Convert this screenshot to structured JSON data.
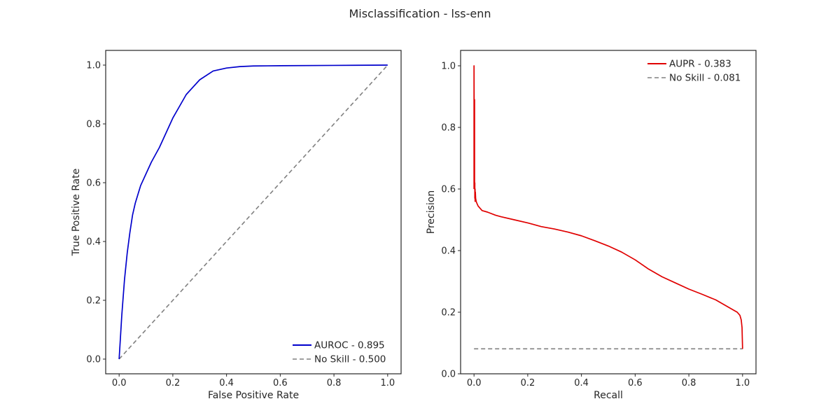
{
  "figure": {
    "title": "Misclassification - lss-enn"
  },
  "chart_data": [
    {
      "type": "line",
      "title": "",
      "xlabel": "False Positive Rate",
      "ylabel": "True Positive Rate",
      "xlim": [
        -0.05,
        1.05
      ],
      "ylim": [
        -0.05,
        1.05
      ],
      "xticks": [
        0.0,
        0.2,
        0.4,
        0.6,
        0.8,
        1.0
      ],
      "yticks": [
        0.0,
        0.2,
        0.4,
        0.6,
        0.8,
        1.0
      ],
      "tick_labels": [
        "0.0",
        "0.2",
        "0.4",
        "0.6",
        "0.8",
        "1.0"
      ],
      "grid": false,
      "legend": "lower-right",
      "series": [
        {
          "name": "AUROC - 0.895",
          "color": "#0000cc",
          "style": "solid",
          "x": [
            0.0,
            0.01,
            0.02,
            0.03,
            0.04,
            0.05,
            0.06,
            0.07,
            0.08,
            0.1,
            0.12,
            0.15,
            0.2,
            0.25,
            0.3,
            0.35,
            0.4,
            0.45,
            0.5,
            0.6,
            0.8,
            1.0
          ],
          "y": [
            0.0,
            0.15,
            0.27,
            0.36,
            0.43,
            0.49,
            0.53,
            0.56,
            0.59,
            0.63,
            0.67,
            0.72,
            0.82,
            0.9,
            0.95,
            0.98,
            0.99,
            0.995,
            0.997,
            0.998,
            0.999,
            1.0
          ]
        },
        {
          "name": "No Skill - 0.500",
          "color": "#808080",
          "style": "dashed",
          "x": [
            0.0,
            1.0
          ],
          "y": [
            0.0,
            1.0
          ]
        }
      ]
    },
    {
      "type": "line",
      "title": "",
      "xlabel": "Recall",
      "ylabel": "Precision",
      "xlim": [
        -0.05,
        1.05
      ],
      "ylim": [
        0.0,
        1.05
      ],
      "xticks": [
        0.0,
        0.2,
        0.4,
        0.6,
        0.8,
        1.0
      ],
      "yticks": [
        0.0,
        0.2,
        0.4,
        0.6,
        0.8,
        1.0
      ],
      "tick_labels": [
        "0.0",
        "0.2",
        "0.4",
        "0.6",
        "0.8",
        "1.0"
      ],
      "grid": false,
      "legend": "upper-right",
      "series": [
        {
          "name": "AUPR - 0.383",
          "color": "#e00000",
          "style": "solid",
          "x": [
            0.0,
            0.0,
            0.001,
            0.002,
            0.002,
            0.003,
            0.003,
            0.004,
            0.004,
            0.005,
            0.006,
            0.008,
            0.01,
            0.015,
            0.02,
            0.03,
            0.05,
            0.08,
            0.1,
            0.15,
            0.2,
            0.25,
            0.3,
            0.35,
            0.4,
            0.45,
            0.5,
            0.55,
            0.6,
            0.65,
            0.7,
            0.75,
            0.8,
            0.85,
            0.9,
            0.93,
            0.96,
            0.98,
            0.99,
            0.995,
            0.998,
            1.0
          ],
          "y": [
            0.6,
            1.0,
            0.7,
            0.89,
            0.6,
            0.62,
            0.57,
            0.6,
            0.56,
            0.59,
            0.57,
            0.56,
            0.555,
            0.545,
            0.54,
            0.53,
            0.525,
            0.515,
            0.51,
            0.5,
            0.49,
            0.478,
            0.47,
            0.46,
            0.448,
            0.432,
            0.415,
            0.395,
            0.37,
            0.34,
            0.315,
            0.295,
            0.275,
            0.258,
            0.24,
            0.225,
            0.21,
            0.2,
            0.19,
            0.175,
            0.15,
            0.081
          ]
        },
        {
          "name": "No Skill - 0.081",
          "color": "#808080",
          "style": "dashed",
          "x": [
            0.0,
            1.0
          ],
          "y": [
            0.081,
            0.081
          ]
        }
      ]
    }
  ]
}
